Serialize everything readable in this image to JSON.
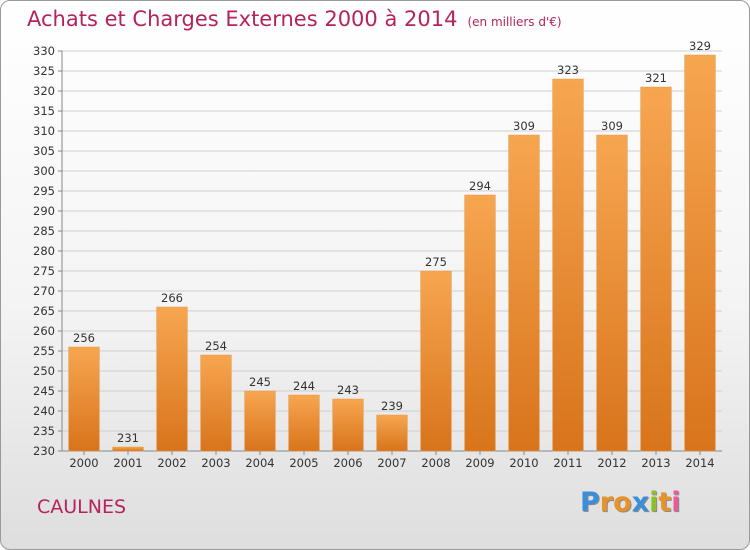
{
  "header": {
    "title": "Achats et Charges Externes 2000 à 2014",
    "unit": "(en milliers d'€)"
  },
  "footer": {
    "commune": "CAULNES",
    "logo_text": "Proxiti",
    "logo_colors": [
      "#3a8fd8",
      "#e8932a",
      "#e8932a",
      "#3a8fd8",
      "#8fbe2a",
      "#e8932a",
      "#e85a9a"
    ]
  },
  "chart_data": {
    "type": "bar",
    "categories": [
      "2000",
      "2001",
      "2002",
      "2003",
      "2004",
      "2005",
      "2006",
      "2007",
      "2008",
      "2009",
      "2010",
      "2011",
      "2012",
      "2013",
      "2014"
    ],
    "values": [
      256,
      231,
      266,
      254,
      245,
      244,
      243,
      239,
      275,
      294,
      309,
      323,
      309,
      321,
      329
    ],
    "title": "Achats et Charges Externes 2000 à 2014",
    "ylim": [
      230,
      330
    ],
    "ytick_step": 5,
    "grid": true,
    "bar_color": "#ef8a2e"
  }
}
